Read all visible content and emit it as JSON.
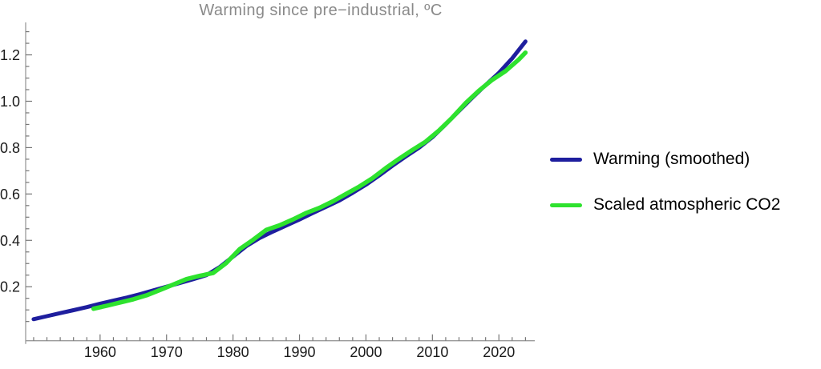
{
  "colors": {
    "background": "#ffffff",
    "axis_line": "#9a9a9a",
    "tick_mark": "#777777",
    "tick_label": "#1a1a1a",
    "title_text": "#8a8a8a",
    "legend_text": "#000000",
    "warming_blue": "#1e1e9e",
    "co2_green": "#2ee22e"
  },
  "chart_data": {
    "type": "line",
    "title": "Warming since pre−industrial, ºC",
    "xlabel": "",
    "ylabel": "",
    "xlim": [
      1948.8,
      2025.4
    ],
    "ylim": [
      -0.033,
      1.34
    ],
    "grid": false,
    "legend_position": "right of plot, vertically centered",
    "x_ticks": {
      "major_values": [
        1960,
        1970,
        1980,
        1990,
        2000,
        2010,
        2020
      ],
      "major_labels": [
        "1960",
        "1970",
        "1980",
        "1990",
        "2000",
        "2010",
        "2020"
      ],
      "minor_start": 1950,
      "minor_step": 2,
      "minor_end": 2024
    },
    "y_ticks": {
      "major_values": [
        0.2,
        0.4,
        0.6,
        0.8,
        1.0,
        1.2
      ],
      "major_labels": [
        "0.2",
        "0.4",
        "0.6",
        "0.8",
        "1.0",
        "1.2"
      ],
      "minor_start": 0.05,
      "minor_step": 0.05,
      "minor_end": 1.3
    },
    "series": [
      {
        "id": "warming-smoothed",
        "name": "Warming (smoothed)",
        "color": "#1e1e9e",
        "stroke_width": 5,
        "points": [
          [
            1950,
            0.06
          ],
          [
            1952,
            0.073
          ],
          [
            1954,
            0.086
          ],
          [
            1956,
            0.099
          ],
          [
            1958,
            0.112
          ],
          [
            1960,
            0.127
          ],
          [
            1962,
            0.14
          ],
          [
            1964,
            0.153
          ],
          [
            1966,
            0.168
          ],
          [
            1968,
            0.184
          ],
          [
            1970,
            0.2
          ],
          [
            1972,
            0.216
          ],
          [
            1974,
            0.232
          ],
          [
            1976,
            0.25
          ],
          [
            1978,
            0.285
          ],
          [
            1980,
            0.33
          ],
          [
            1982,
            0.375
          ],
          [
            1984,
            0.41
          ],
          [
            1986,
            0.438
          ],
          [
            1988,
            0.464
          ],
          [
            1990,
            0.49
          ],
          [
            1992,
            0.518
          ],
          [
            1994,
            0.545
          ],
          [
            1996,
            0.572
          ],
          [
            1998,
            0.605
          ],
          [
            2000,
            0.64
          ],
          [
            2002,
            0.68
          ],
          [
            2004,
            0.722
          ],
          [
            2006,
            0.762
          ],
          [
            2008,
            0.8
          ],
          [
            2010,
            0.845
          ],
          [
            2012,
            0.9
          ],
          [
            2014,
            0.958
          ],
          [
            2016,
            1.015
          ],
          [
            2018,
            1.07
          ],
          [
            2020,
            1.122
          ],
          [
            2022,
            1.185
          ],
          [
            2024,
            1.258
          ]
        ]
      },
      {
        "id": "scaled-co2",
        "name": "Scaled atmospheric CO2",
        "color": "#2ee22e",
        "stroke_width": 5.5,
        "points": [
          [
            1959,
            0.105
          ],
          [
            1961,
            0.118
          ],
          [
            1963,
            0.132
          ],
          [
            1965,
            0.146
          ],
          [
            1967,
            0.163
          ],
          [
            1969,
            0.186
          ],
          [
            1971,
            0.209
          ],
          [
            1973,
            0.233
          ],
          [
            1975,
            0.247
          ],
          [
            1977,
            0.259
          ],
          [
            1979,
            0.303
          ],
          [
            1981,
            0.362
          ],
          [
            1983,
            0.402
          ],
          [
            1985,
            0.445
          ],
          [
            1987,
            0.465
          ],
          [
            1989,
            0.49
          ],
          [
            1991,
            0.518
          ],
          [
            1993,
            0.54
          ],
          [
            1995,
            0.568
          ],
          [
            1997,
            0.6
          ],
          [
            1999,
            0.632
          ],
          [
            2001,
            0.668
          ],
          [
            2003,
            0.712
          ],
          [
            2005,
            0.752
          ],
          [
            2007,
            0.79
          ],
          [
            2009,
            0.826
          ],
          [
            2011,
            0.874
          ],
          [
            2013,
            0.93
          ],
          [
            2015,
            0.992
          ],
          [
            2017,
            1.046
          ],
          [
            2019,
            1.092
          ],
          [
            2021,
            1.13
          ],
          [
            2023,
            1.18
          ],
          [
            2024,
            1.21
          ]
        ]
      }
    ]
  }
}
